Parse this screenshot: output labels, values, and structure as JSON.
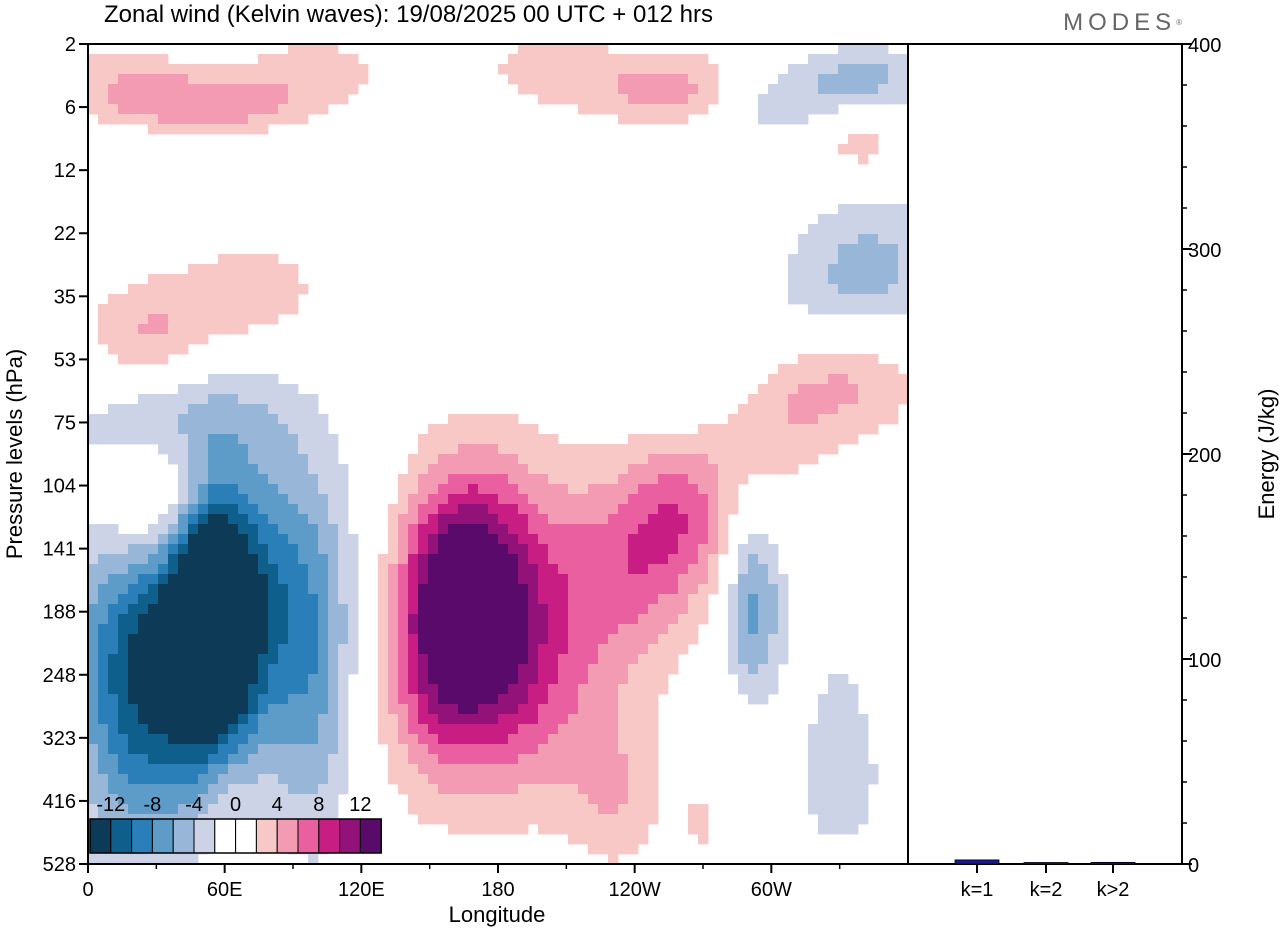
{
  "title": "Zonal wind (Kelvin waves):  19/08/2025  00 UTC  + 012 hrs",
  "brand": "MODES",
  "brand_mark": "®",
  "colors": {
    "neg": [
      "#0d3b57",
      "#0e5f8c",
      "#2b7fb8",
      "#5d9cc9",
      "#98b6d8",
      "#ccd3e7"
    ],
    "pos": [
      "#f7c8c6",
      "#f39bb3",
      "#ea5f9f",
      "#c81e84",
      "#93127a",
      "#5a0a6b"
    ],
    "bar": "#1a1a8c"
  },
  "chart_data": [
    {
      "type": "heatmap",
      "title": "Zonal wind (Kelvin waves):  19/08/2025  00 UTC  + 012 hrs",
      "xlabel": "Longitude",
      "ylabel": "Pressure levels (hPa)",
      "x_ticks": [
        "0",
        "60E",
        "120E",
        "180",
        "120W",
        "60W"
      ],
      "y_ticks": [
        "2",
        "6",
        "12",
        "22",
        "35",
        "53",
        "75",
        "104",
        "141",
        "188",
        "248",
        "323",
        "416",
        "528"
      ],
      "colorbar": {
        "labels": [
          "-12",
          "-8",
          "-4",
          "0",
          "4",
          "8",
          "12"
        ],
        "levels": [
          -14,
          -12,
          -10,
          -8,
          -6,
          -4,
          -2,
          2,
          4,
          6,
          8,
          10,
          12,
          14
        ]
      },
      "features": [
        {
          "name": "negative-core-60E",
          "lon": 55,
          "level_index": 9.1,
          "value": -14
        },
        {
          "name": "positive-core-180",
          "lon": 168,
          "level_index": 8.8,
          "value": 10
        },
        {
          "name": "negative-core-60W",
          "lon": 290,
          "level_index": 9.0,
          "value": -6
        }
      ]
    },
    {
      "type": "bar",
      "categories": [
        "k=1",
        "k=2",
        "k>2"
      ],
      "values": [
        2.0,
        0.6,
        0.8
      ],
      "ylabel": "Energy (J/kg)",
      "ylim": [
        0,
        400
      ],
      "y_ticks": [
        "0",
        "100",
        "200",
        "300",
        "400"
      ]
    }
  ]
}
